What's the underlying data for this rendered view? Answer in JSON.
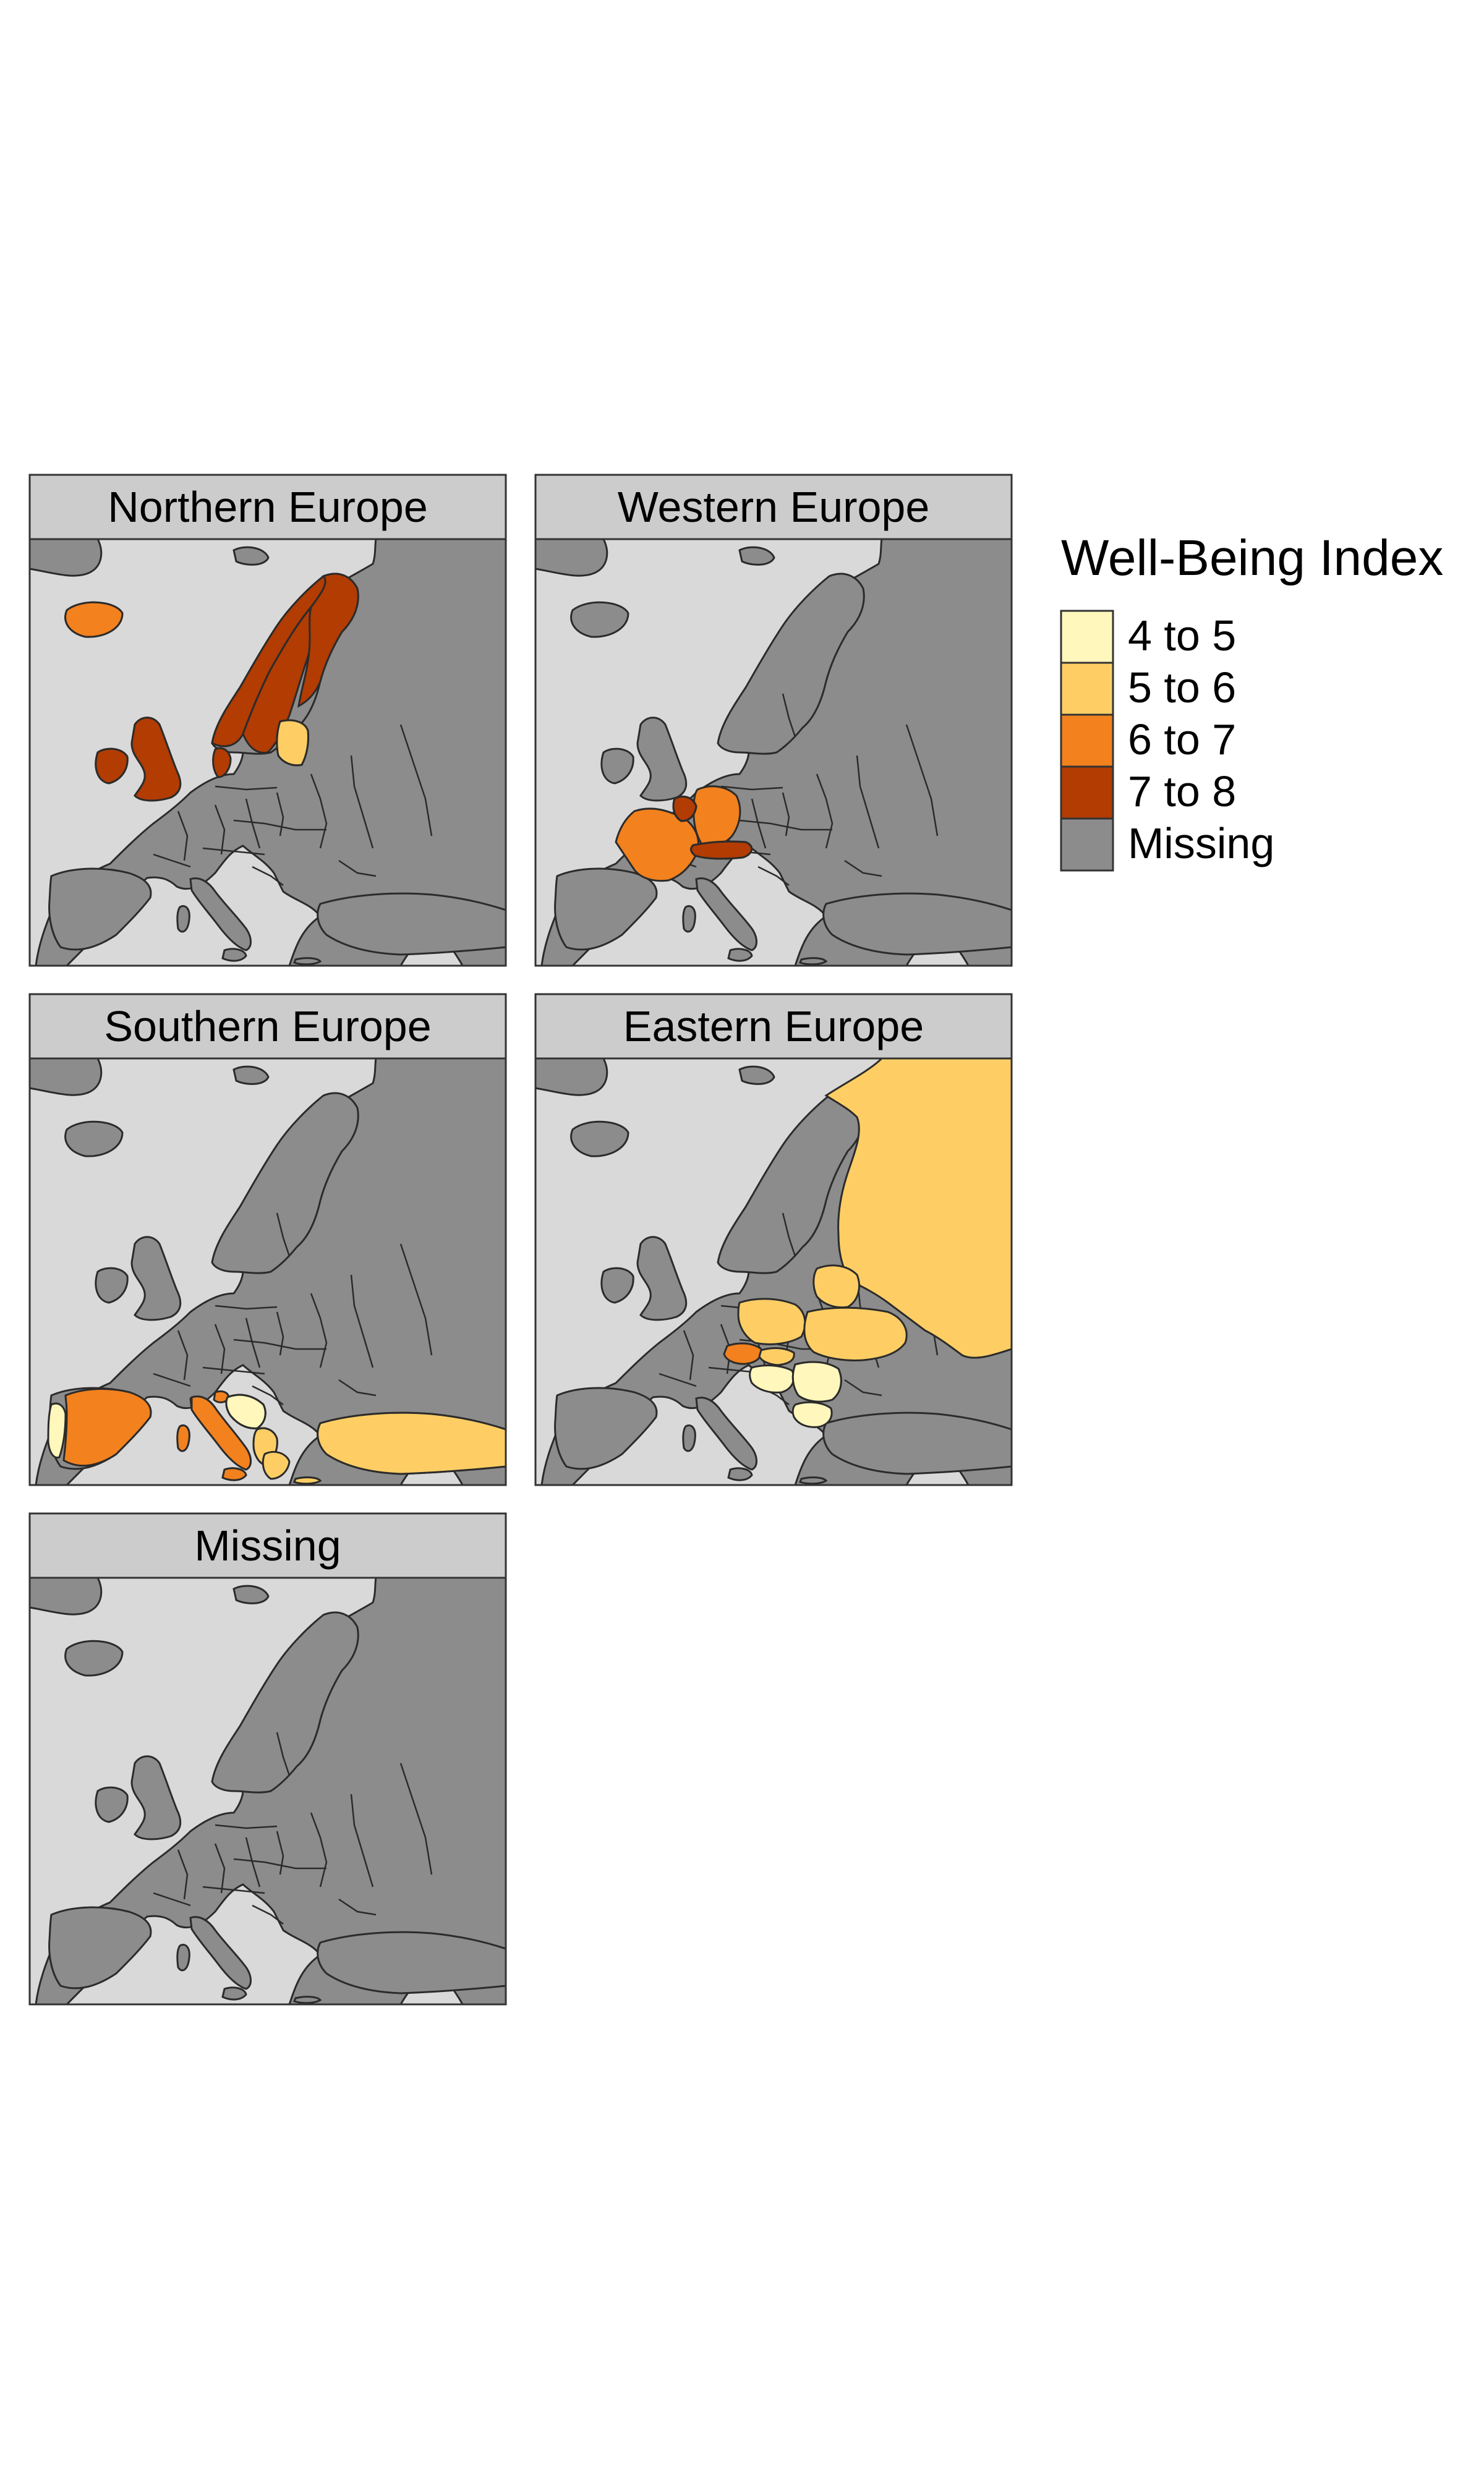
{
  "legend": {
    "title": "Well-Being Index",
    "items": [
      {
        "label": "4 to 5",
        "color": "#FFF7BC"
      },
      {
        "label": "5 to 6",
        "color": "#FECE65"
      },
      {
        "label": "6 to 7",
        "color": "#F2811E"
      },
      {
        "label": "7 to 8",
        "color": "#B23C02"
      },
      {
        "label": "Missing",
        "color": "#8C8C8C"
      }
    ]
  },
  "colors": {
    "sea": "#D9D9D9",
    "land": "#8C8C8C",
    "border": "#2B2B2B",
    "strip": "#CCCCCC"
  },
  "panels": [
    {
      "title": "Northern Europe",
      "countries": [
        {
          "name": "Iceland",
          "category": "6 to 7"
        },
        {
          "name": "Norway",
          "category": "7 to 8"
        },
        {
          "name": "Sweden",
          "category": "7 to 8"
        },
        {
          "name": "Finland",
          "category": "7 to 8"
        },
        {
          "name": "Denmark",
          "category": "7 to 8"
        },
        {
          "name": "United Kingdom",
          "category": "7 to 8"
        },
        {
          "name": "Ireland",
          "category": "7 to 8"
        },
        {
          "name": "Estonia",
          "category": "5 to 6"
        },
        {
          "name": "Latvia",
          "category": "5 to 6"
        },
        {
          "name": "Lithuania",
          "category": "5 to 6"
        }
      ]
    },
    {
      "title": "Western Europe",
      "countries": [
        {
          "name": "France",
          "category": "6 to 7"
        },
        {
          "name": "Germany",
          "category": "6 to 7"
        },
        {
          "name": "Belgium",
          "category": "6 to 7"
        },
        {
          "name": "Netherlands",
          "category": "7 to 8"
        },
        {
          "name": "Luxembourg",
          "category": "7 to 8"
        },
        {
          "name": "Switzerland",
          "category": "7 to 8"
        },
        {
          "name": "Austria",
          "category": "7 to 8"
        }
      ]
    },
    {
      "title": "Southern Europe",
      "countries": [
        {
          "name": "Portugal",
          "category": "4 to 5"
        },
        {
          "name": "Spain",
          "category": "6 to 7"
        },
        {
          "name": "Italy",
          "category": "6 to 7"
        },
        {
          "name": "Slovenia",
          "category": "6 to 7"
        },
        {
          "name": "Croatia",
          "category": "4 to 5"
        },
        {
          "name": "Bosnia and Herzegovina",
          "category": "4 to 5"
        },
        {
          "name": "Serbia",
          "category": "4 to 5"
        },
        {
          "name": "Montenegro",
          "category": "4 to 5"
        },
        {
          "name": "Albania",
          "category": "5 to 6"
        },
        {
          "name": "North Macedonia",
          "category": "5 to 6"
        },
        {
          "name": "Greece",
          "category": "5 to 6"
        },
        {
          "name": "Turkey",
          "category": "5 to 6"
        }
      ]
    },
    {
      "title": "Eastern Europe",
      "countries": [
        {
          "name": "Russia",
          "category": "5 to 6"
        },
        {
          "name": "Belarus",
          "category": "5 to 6"
        },
        {
          "name": "Poland",
          "category": "5 to 6"
        },
        {
          "name": "Ukraine",
          "category": "5 to 6"
        },
        {
          "name": "Czech Republic",
          "category": "6 to 7"
        },
        {
          "name": "Slovakia",
          "category": "5 to 6"
        },
        {
          "name": "Hungary",
          "category": "4 to 5"
        },
        {
          "name": "Romania",
          "category": "4 to 5"
        },
        {
          "name": "Moldova",
          "category": "4 to 5"
        },
        {
          "name": "Bulgaria",
          "category": "4 to 5"
        }
      ]
    },
    {
      "title": "Missing",
      "countries": []
    }
  ]
}
